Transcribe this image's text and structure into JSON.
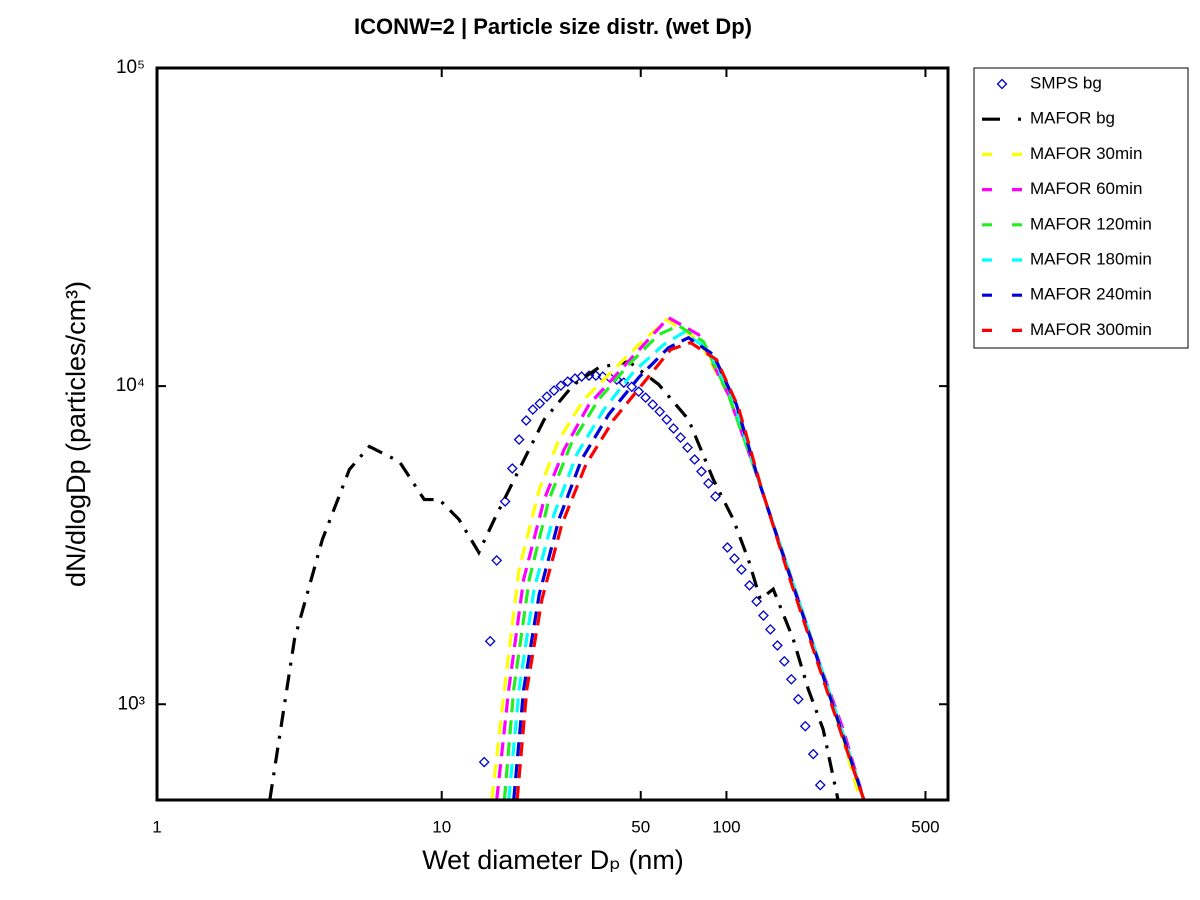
{
  "chart_data": {
    "type": "line",
    "title": "ICONW=2 | Particle size distr. (wet Dp)",
    "x_label": "Wet diameter Dₚ (nm)",
    "y_label": "dN/dlogDp (particles/cm³)",
    "log_x": true,
    "log_y": true,
    "grid": false,
    "legend": "outside-right",
    "xlim": [
      1,
      600
    ],
    "xticks": [
      1,
      10,
      50,
      100,
      500
    ],
    "ylim": [
      500,
      100000
    ],
    "yticks": [
      {
        "value": 1000,
        "label": "10³"
      },
      {
        "value": 10000,
        "label": "10⁴"
      },
      {
        "value": 100000,
        "label": "10⁵"
      }
    ],
    "series": [
      {
        "name": "SMPS bg",
        "color": "#0000cc",
        "style": "markers",
        "x": [
          14.1,
          14.8,
          15.6,
          16.7,
          17.7,
          18.7,
          19.8,
          20.9,
          22.1,
          23.4,
          24.8,
          26.2,
          27.7,
          29.4,
          31.0,
          32.9,
          34.8,
          36.8,
          38.9,
          41.2,
          43.6,
          46.5,
          49.2,
          52.0,
          55.1,
          58.3,
          61.7,
          65.2,
          69.0,
          73.0,
          77.3,
          81.7,
          86.5,
          91.5,
          100.8,
          106.7,
          112.9,
          120.5,
          127.6,
          134.9,
          142.7,
          151.0,
          159.7,
          169.0,
          178.8,
          189.2,
          201.8,
          213.6
        ],
        "values": [
          658,
          1578,
          2832,
          4339,
          5508,
          6790,
          7796,
          8440,
          8815,
          9268,
          9682,
          10036,
          10330,
          10560,
          10715,
          10790,
          10790,
          10715,
          10640,
          10480,
          10250,
          9950,
          9610,
          9200,
          8750,
          8320,
          7850,
          7360,
          6890,
          6410,
          5880,
          5390,
          4945,
          4500,
          3110,
          2870,
          2650,
          2364,
          2105,
          1900,
          1718,
          1530,
          1364,
          1198,
          1037,
          853,
          697,
          557
        ]
      },
      {
        "name": "MAFOR bg",
        "color": "#000000",
        "style": "dashdot",
        "x": [
          2.49,
          3.04,
          3.81,
          4.74,
          5.57,
          7.1,
          8.68,
          9.8,
          11.5,
          13.5,
          15.3,
          18.7,
          22.9,
          29.1,
          35.6,
          45.4,
          57.8,
          73.6,
          90.0,
          105.7,
          119.4,
          131.5,
          146,
          171.7,
          193.8,
          218.6,
          246.6
        ],
        "values": [
          500,
          1600,
          3297,
          5470,
          6460,
          5790,
          4400,
          4400,
          3810,
          3000,
          3810,
          5470,
          7850,
          10120,
          11430,
          11940,
          10120,
          7850,
          5080,
          3810,
          2850,
          2140,
          2300,
          1600,
          1115,
          834,
          500
        ]
      },
      {
        "name": "MAFOR 30min",
        "color": "#ffff00",
        "style": "dashed",
        "x": [
          15.0,
          16.6,
          18.7,
          22.0,
          25.8,
          31.6,
          38.6,
          49.2,
          61.7,
          79.8,
          101.6,
          129.5,
          164.9,
          210.0,
          257,
          294.7
        ],
        "values": [
          500,
          1115,
          2655,
          4730,
          6790,
          9080,
          10870,
          13490,
          16180,
          13990,
          9400,
          5080,
          2655,
          1384,
          776,
          500
        ]
      },
      {
        "name": "MAFOR 60min",
        "color": "#ff00ff",
        "style": "dashed",
        "x": [
          15.6,
          17.2,
          19.4,
          22.9,
          26.9,
          32.9,
          40.2,
          51.2,
          62.6,
          79.8,
          101.6,
          129.5,
          165,
          210,
          257,
          304
        ],
        "values": [
          500,
          1115,
          2470,
          4400,
          6320,
          8750,
          10640,
          13490,
          16410,
          14520,
          9400,
          5080,
          2655,
          1384,
          834,
          500
        ]
      },
      {
        "name": "MAFOR 120min",
        "color": "#22ee22",
        "style": "dashed",
        "x": [
          16.6,
          17.9,
          20.3,
          23.8,
          28.4,
          35.6,
          45.4,
          57.8,
          67.9,
          83.0,
          101.6,
          129.5,
          164.9,
          210,
          257,
          304
        ],
        "values": [
          500,
          1115,
          2470,
          4400,
          6550,
          9080,
          11690,
          14520,
          15490,
          13800,
          9400,
          5080,
          2655,
          1384,
          805,
          500
        ]
      },
      {
        "name": "MAFOR 180min",
        "color": "#00ffff",
        "style": "dashed",
        "x": [
          17.2,
          18.7,
          21.1,
          24.8,
          29.8,
          37.1,
          47.2,
          60.1,
          70.6,
          86.5,
          105.7,
          129.5,
          165,
          210,
          257,
          304
        ],
        "values": [
          500,
          1115,
          2296,
          3953,
          6100,
          8440,
          11090,
          13490,
          14740,
          13030,
          9080,
          5080,
          2655,
          1384,
          805,
          500
        ]
      },
      {
        "name": "MAFOR 240min",
        "color": "#0000dd",
        "style": "dashed",
        "x": [
          17.9,
          19.4,
          22.0,
          25.8,
          31.0,
          38.6,
          49.2,
          62.6,
          73.6,
          90.0,
          108.4,
          129.5,
          165,
          210,
          257,
          304
        ],
        "values": [
          500,
          1115,
          2213,
          3810,
          5880,
          8150,
          10640,
          13210,
          14200,
          12560,
          8750,
          5080,
          2615,
          1364,
          793,
          500
        ]
      },
      {
        "name": "MAFOR 300min",
        "color": "#ff0000",
        "style": "dashed",
        "x": [
          18.4,
          19.9,
          22.5,
          26.4,
          32.1,
          40.2,
          51.2,
          63.7,
          74.8,
          92.3,
          110.2,
          131.5,
          165,
          210,
          257,
          304
        ],
        "values": [
          500,
          1115,
          2140,
          3670,
          5670,
          7850,
          10250,
          13030,
          13700,
          12110,
          8570,
          4911,
          2560,
          1335,
          776,
          500
        ]
      }
    ]
  }
}
